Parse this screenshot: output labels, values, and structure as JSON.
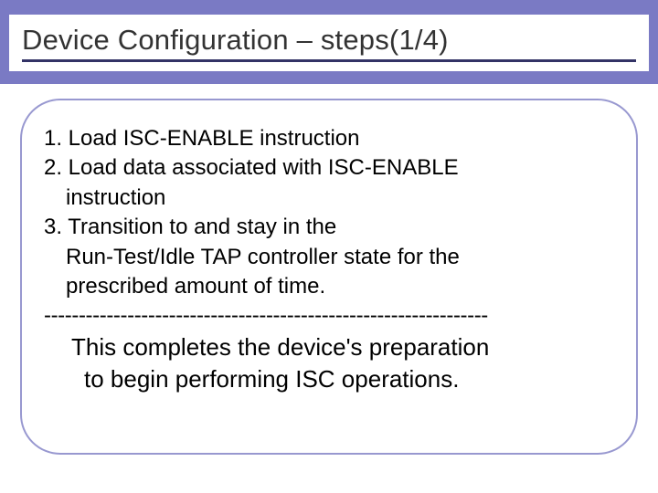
{
  "slide": {
    "title": "Device Configuration – steps(1/4)",
    "header_band_color": "#7a7ac4",
    "title_bg_color": "#ffffff",
    "title_underline_color": "#333366",
    "border_color": "#9898d0",
    "border_radius": 44,
    "border_width": 2,
    "title_fontsize": 31,
    "body_fontsize": 24,
    "summary_fontsize": 26,
    "text_color": "#000000",
    "title_color": "#333333",
    "lines": [
      "1. Load ISC-ENABLE instruction",
      "2. Load data associated with ISC-ENABLE",
      "    instruction",
      "3. Transition to and stay in the",
      "   Run-Test/Idle TAP controller state for the",
      "   prescribed amount of time."
    ],
    "divider": "----------------------------------------------------------------",
    "summary_lines": [
      "This completes the device's preparation",
      " to begin performing ISC operations."
    ]
  }
}
